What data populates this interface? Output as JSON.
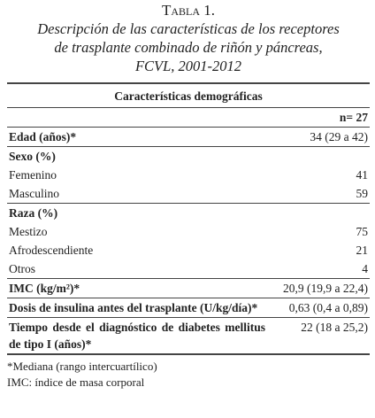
{
  "header": {
    "title": "Tabla 1.",
    "caption": [
      "Descripción de las características de los receptores",
      "de trasplante combinado de riñón y páncreas,",
      "FCVL, 2001-2012"
    ]
  },
  "table": {
    "header": "Características demográficas",
    "n": "n= 27",
    "rows": [
      {
        "label": "Edad (años)*",
        "value": "34 (29 a 42)"
      },
      {
        "label": "Sexo (%)",
        "items": [
          [
            "Femenino",
            "41"
          ],
          [
            "Masculino",
            "59"
          ]
        ]
      },
      {
        "label": "Raza (%)",
        "items": [
          [
            "Mestizo",
            "75"
          ],
          [
            "Afrodescendiente",
            "21"
          ],
          [
            "Otros",
            "4"
          ]
        ]
      },
      {
        "label": "IMC (kg/m²)*",
        "value": "20,9 (19,9 a 22,4)"
      },
      {
        "label": "Dosis de insulina antes del trasplante (U/kg/día)*",
        "value": "0,63 (0,4 a 0,89)"
      },
      {
        "label": "Tiempo desde el diagnóstico de diabetes mellitus de tipo I (años)*",
        "value": "22 (18 a 25,2)"
      }
    ]
  },
  "footnotes": [
    "*Mediana (rango intercuartílico)",
    "IMC: índice de masa corporal"
  ]
}
